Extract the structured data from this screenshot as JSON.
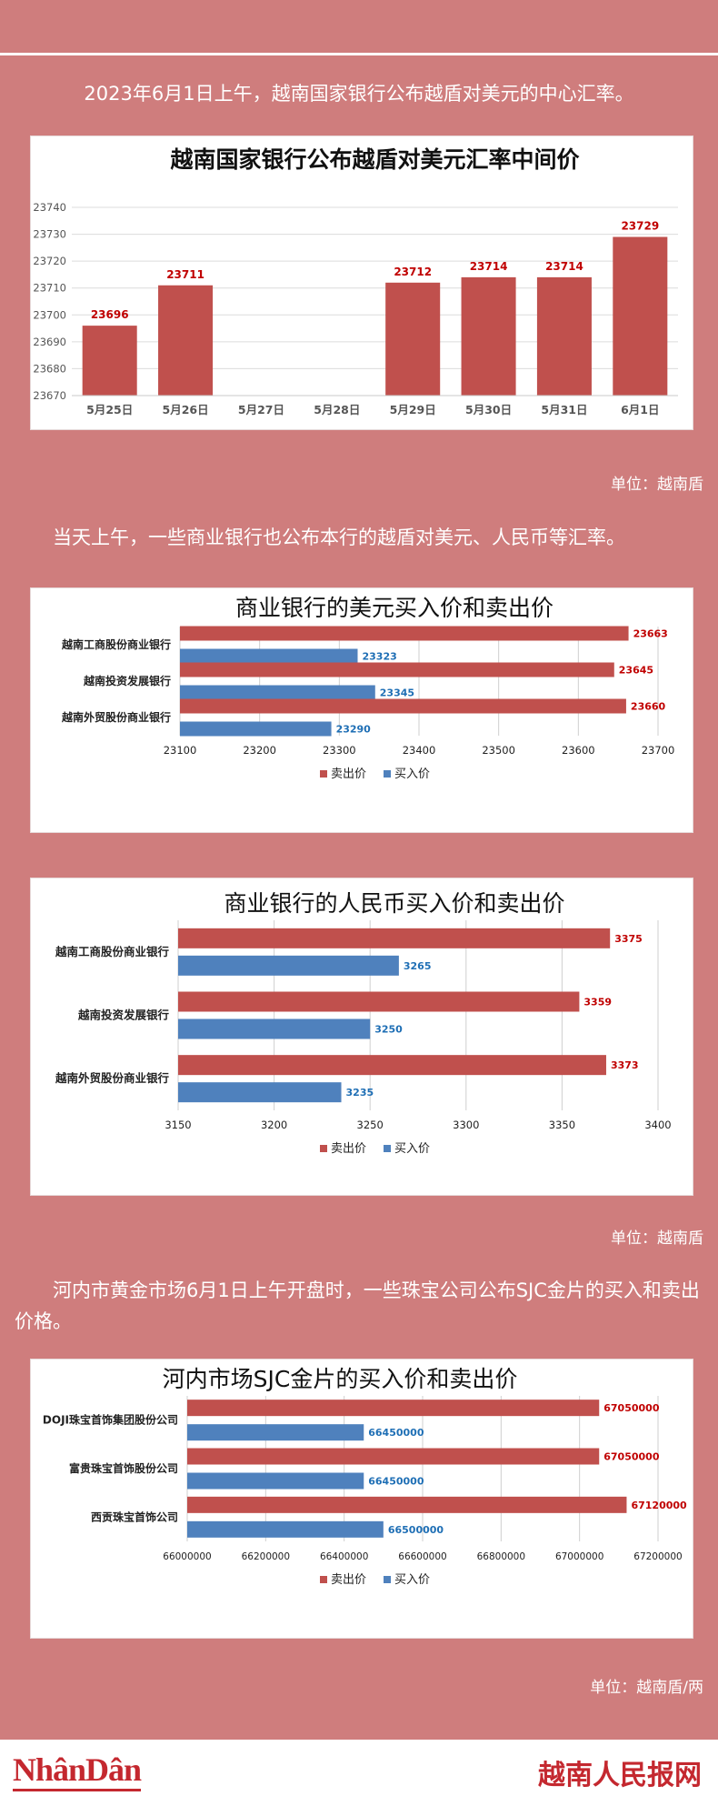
{
  "intro_text": "2023年6月1日上午，越南国家银行公布越盾对美元的中心汇率。",
  "chart1_unit": "单位：越南盾",
  "para2_text": "当天上午，一些商业银行也公布本行的越盾对美元、人民币等汇率。",
  "chart3_unit": "单位：越南盾",
  "para3_text": "河内市黄金市场6月1日上午开盘时，一些珠宝公司公布SJC金片的买入和卖出价格。",
  "chart4_unit": "单位：越南盾/两",
  "footer": {
    "logo_left": "NhânDân",
    "logo_right": "越南人民报网"
  },
  "colors": {
    "background": "#cf7d7d",
    "sell": "#c0504d",
    "buy": "#4f81bd",
    "sell_label": "#c00000",
    "buy_label": "#1f6fb5"
  },
  "chart_data": [
    {
      "type": "bar",
      "title": "越南国家银行公布越盾对美元汇率中间价",
      "categories": [
        "5月25日",
        "5月26日",
        "5月27日",
        "5月28日",
        "5月29日",
        "5月30日",
        "5月31日",
        "6月1日"
      ],
      "values": [
        23696,
        23711,
        null,
        null,
        23712,
        23714,
        23714,
        23729
      ],
      "ylim": [
        23670,
        23740
      ],
      "yticks": [
        23670,
        23680,
        23690,
        23700,
        23710,
        23720,
        23730,
        23740
      ],
      "grid": true
    },
    {
      "type": "bar",
      "orientation": "horizontal",
      "title": "商业银行的美元买入价和卖出价",
      "categories": [
        "越南工商股份商业银行",
        "越南投资发展银行",
        "越南外贸股份商业银行"
      ],
      "series": [
        {
          "name": "卖出价",
          "values": [
            23663,
            23645,
            23660
          ]
        },
        {
          "name": "买入价",
          "values": [
            23323,
            23345,
            23290
          ]
        }
      ],
      "xlim": [
        23100,
        23700
      ],
      "xticks": [
        23100,
        23200,
        23300,
        23400,
        23500,
        23600,
        23700
      ],
      "legend": "bottom",
      "grid": true
    },
    {
      "type": "bar",
      "orientation": "horizontal",
      "title": "商业银行的人民币买入价和卖出价",
      "categories": [
        "越南工商股份商业银行",
        "越南投资发展银行",
        "越南外贸股份商业银行"
      ],
      "series": [
        {
          "name": "卖出价",
          "values": [
            3375,
            3359,
            3373
          ]
        },
        {
          "name": "买入价",
          "values": [
            3265,
            3250,
            3235
          ]
        }
      ],
      "xlim": [
        3150,
        3400
      ],
      "xticks": [
        3150,
        3200,
        3250,
        3300,
        3350,
        3400
      ],
      "legend": "bottom",
      "grid": true
    },
    {
      "type": "bar",
      "orientation": "horizontal",
      "title": "河内市场SJC金片的买入价和卖出价",
      "categories": [
        "DOJI珠宝首饰集团股份公司",
        "富贵珠宝首饰股份公司",
        "西贡珠宝首饰公司"
      ],
      "series": [
        {
          "name": "卖出价",
          "values": [
            67050000,
            67050000,
            67120000
          ]
        },
        {
          "name": "买入价",
          "values": [
            66450000,
            66450000,
            66500000
          ]
        }
      ],
      "xlim": [
        66000000,
        67200000
      ],
      "xticks": [
        66000000,
        66200000,
        66400000,
        66600000,
        66800000,
        67000000,
        67200000
      ],
      "legend": "bottom",
      "grid": true
    }
  ]
}
